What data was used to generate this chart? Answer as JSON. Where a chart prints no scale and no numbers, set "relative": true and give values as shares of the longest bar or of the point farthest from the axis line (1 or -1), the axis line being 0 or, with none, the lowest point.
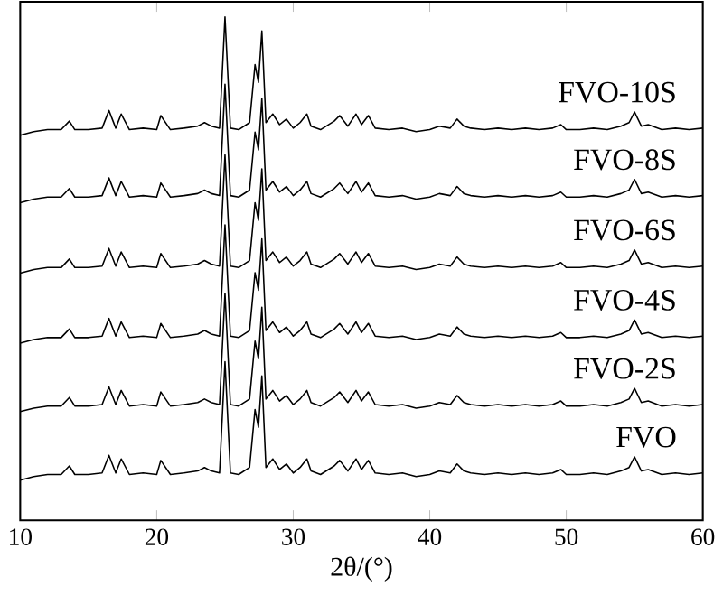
{
  "chart_data": {
    "type": "line",
    "xlabel": "2θ/(°)",
    "relative": true,
    "xlim": [
      10,
      60
    ],
    "xticks": [
      10,
      20,
      30,
      40,
      50,
      60
    ],
    "x": [
      10,
      11,
      12,
      13,
      13.6,
      14,
      15,
      16,
      16.5,
      17,
      17.4,
      18,
      19,
      20,
      20.3,
      21,
      22,
      23,
      23.5,
      24,
      24.6,
      25,
      25.4,
      26,
      26.8,
      27.2,
      27.45,
      27.7,
      28,
      28.5,
      29,
      29.5,
      30,
      30.5,
      31,
      31.3,
      32,
      33,
      33.4,
      34,
      34.6,
      35,
      35.5,
      36,
      37,
      38,
      39,
      40,
      40.7,
      41.5,
      42,
      42.5,
      43,
      44,
      45,
      46,
      47,
      48,
      49,
      49.6,
      50,
      51,
      52,
      53,
      54,
      54.6,
      55,
      55.5,
      56,
      57,
      58,
      59,
      60
    ],
    "series": [
      {
        "name": "FVO-10S",
        "color": "#000000",
        "values": [
          0.765,
          0.772,
          0.776,
          0.776,
          0.793,
          0.776,
          0.776,
          0.779,
          0.814,
          0.779,
          0.807,
          0.776,
          0.779,
          0.776,
          0.804,
          0.776,
          0.779,
          0.783,
          0.79,
          0.783,
          0.779,
          1.0,
          0.779,
          0.776,
          0.79,
          0.905,
          0.87,
          0.972,
          0.79,
          0.807,
          0.786,
          0.797,
          0.779,
          0.79,
          0.807,
          0.783,
          0.776,
          0.793,
          0.804,
          0.783,
          0.807,
          0.786,
          0.804,
          0.779,
          0.776,
          0.779,
          0.772,
          0.776,
          0.783,
          0.779,
          0.797,
          0.783,
          0.779,
          0.776,
          0.779,
          0.776,
          0.779,
          0.776,
          0.779,
          0.786,
          0.776,
          0.776,
          0.779,
          0.776,
          0.783,
          0.79,
          0.811,
          0.783,
          0.786,
          0.776,
          0.779,
          0.776,
          0.779
        ]
      },
      {
        "name": "FVO-8S",
        "color": "#000000",
        "values": [
          0.631,
          0.638,
          0.642,
          0.642,
          0.659,
          0.642,
          0.642,
          0.645,
          0.68,
          0.645,
          0.673,
          0.642,
          0.645,
          0.642,
          0.67,
          0.642,
          0.645,
          0.649,
          0.656,
          0.649,
          0.645,
          0.866,
          0.645,
          0.642,
          0.656,
          0.771,
          0.736,
          0.838,
          0.656,
          0.673,
          0.652,
          0.663,
          0.645,
          0.656,
          0.673,
          0.649,
          0.642,
          0.659,
          0.67,
          0.649,
          0.673,
          0.652,
          0.67,
          0.645,
          0.642,
          0.645,
          0.638,
          0.642,
          0.649,
          0.645,
          0.663,
          0.649,
          0.645,
          0.642,
          0.645,
          0.642,
          0.645,
          0.642,
          0.645,
          0.652,
          0.642,
          0.642,
          0.645,
          0.642,
          0.649,
          0.656,
          0.677,
          0.649,
          0.652,
          0.642,
          0.645,
          0.642,
          0.645
        ]
      },
      {
        "name": "FVO-6S",
        "color": "#000000",
        "values": [
          0.491,
          0.498,
          0.502,
          0.502,
          0.519,
          0.502,
          0.502,
          0.505,
          0.54,
          0.505,
          0.533,
          0.502,
          0.505,
          0.502,
          0.53,
          0.502,
          0.505,
          0.509,
          0.516,
          0.509,
          0.505,
          0.726,
          0.505,
          0.502,
          0.516,
          0.631,
          0.596,
          0.698,
          0.516,
          0.533,
          0.512,
          0.523,
          0.505,
          0.516,
          0.533,
          0.509,
          0.502,
          0.519,
          0.53,
          0.509,
          0.533,
          0.512,
          0.53,
          0.505,
          0.502,
          0.505,
          0.498,
          0.502,
          0.509,
          0.505,
          0.523,
          0.509,
          0.505,
          0.502,
          0.505,
          0.502,
          0.505,
          0.502,
          0.505,
          0.512,
          0.502,
          0.502,
          0.505,
          0.502,
          0.509,
          0.516,
          0.537,
          0.509,
          0.512,
          0.502,
          0.505,
          0.502,
          0.505
        ]
      },
      {
        "name": "FVO-4S",
        "color": "#000000",
        "values": [
          0.352,
          0.359,
          0.363,
          0.363,
          0.38,
          0.363,
          0.363,
          0.366,
          0.401,
          0.366,
          0.394,
          0.363,
          0.366,
          0.363,
          0.391,
          0.363,
          0.366,
          0.37,
          0.377,
          0.37,
          0.366,
          0.587,
          0.366,
          0.363,
          0.377,
          0.492,
          0.457,
          0.559,
          0.377,
          0.394,
          0.373,
          0.384,
          0.366,
          0.377,
          0.394,
          0.37,
          0.363,
          0.38,
          0.391,
          0.37,
          0.394,
          0.373,
          0.391,
          0.366,
          0.363,
          0.366,
          0.359,
          0.363,
          0.37,
          0.366,
          0.384,
          0.37,
          0.366,
          0.363,
          0.366,
          0.363,
          0.366,
          0.363,
          0.366,
          0.373,
          0.363,
          0.363,
          0.366,
          0.363,
          0.37,
          0.377,
          0.398,
          0.37,
          0.373,
          0.363,
          0.366,
          0.363,
          0.366
        ]
      },
      {
        "name": "FVO-2S",
        "color": "#000000",
        "values": [
          0.216,
          0.223,
          0.227,
          0.227,
          0.244,
          0.227,
          0.227,
          0.23,
          0.265,
          0.23,
          0.258,
          0.227,
          0.23,
          0.227,
          0.255,
          0.227,
          0.23,
          0.234,
          0.241,
          0.234,
          0.23,
          0.451,
          0.23,
          0.227,
          0.241,
          0.356,
          0.321,
          0.423,
          0.241,
          0.258,
          0.237,
          0.248,
          0.23,
          0.241,
          0.258,
          0.234,
          0.227,
          0.244,
          0.255,
          0.234,
          0.258,
          0.237,
          0.255,
          0.23,
          0.227,
          0.23,
          0.223,
          0.227,
          0.234,
          0.23,
          0.248,
          0.234,
          0.23,
          0.227,
          0.23,
          0.227,
          0.23,
          0.227,
          0.23,
          0.237,
          0.227,
          0.227,
          0.23,
          0.227,
          0.234,
          0.241,
          0.262,
          0.234,
          0.237,
          0.227,
          0.23,
          0.227,
          0.23
        ]
      },
      {
        "name": "FVO",
        "color": "#000000",
        "values": [
          0.08,
          0.087,
          0.091,
          0.091,
          0.108,
          0.091,
          0.091,
          0.094,
          0.129,
          0.094,
          0.122,
          0.091,
          0.094,
          0.091,
          0.119,
          0.091,
          0.094,
          0.098,
          0.105,
          0.098,
          0.094,
          0.315,
          0.094,
          0.091,
          0.105,
          0.22,
          0.185,
          0.287,
          0.105,
          0.122,
          0.101,
          0.112,
          0.094,
          0.105,
          0.122,
          0.098,
          0.091,
          0.108,
          0.119,
          0.098,
          0.122,
          0.101,
          0.119,
          0.094,
          0.091,
          0.094,
          0.087,
          0.091,
          0.098,
          0.094,
          0.112,
          0.098,
          0.094,
          0.091,
          0.094,
          0.091,
          0.094,
          0.091,
          0.094,
          0.101,
          0.091,
          0.091,
          0.094,
          0.091,
          0.098,
          0.105,
          0.126,
          0.098,
          0.101,
          0.091,
          0.094,
          0.091,
          0.094
        ]
      }
    ]
  }
}
